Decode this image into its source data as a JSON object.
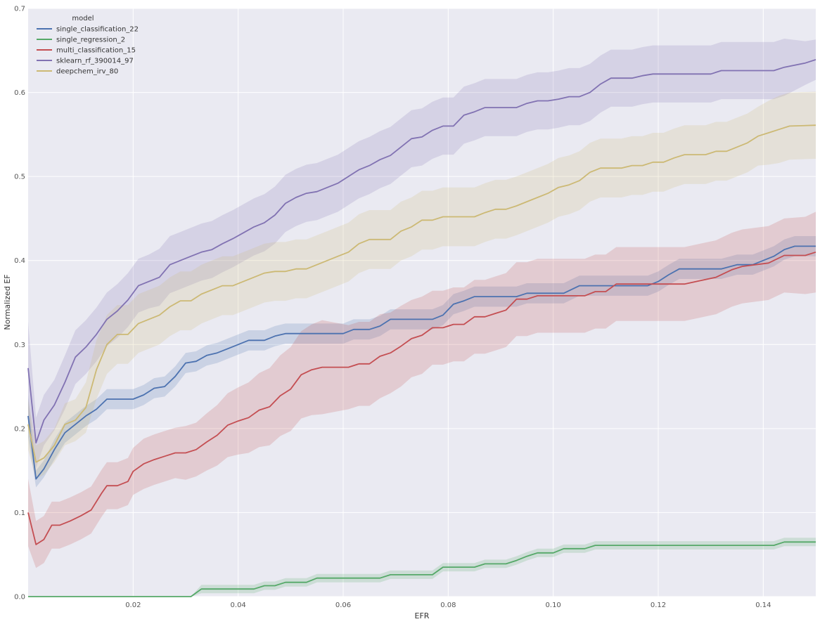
{
  "chart_data": {
    "type": "line",
    "title": "",
    "xlabel": "EFR",
    "ylabel": "Normalized EF",
    "xlim": [
      0.0,
      0.15
    ],
    "ylim": [
      0.0,
      0.7
    ],
    "x_ticks": [
      0.02,
      0.04,
      0.06,
      0.08,
      0.1,
      0.12,
      0.14
    ],
    "x_tick_labels": [
      "0.02",
      "0.04",
      "0.06",
      "0.08",
      "0.10",
      "0.12",
      "0.14"
    ],
    "y_ticks": [
      0.0,
      0.1,
      0.2,
      0.3,
      0.4,
      0.5,
      0.6,
      0.7
    ],
    "y_tick_labels": [
      "0.0",
      "0.1",
      "0.2",
      "0.3",
      "0.4",
      "0.5",
      "0.6",
      "0.7"
    ],
    "grid": true,
    "background": "#eaeaf2",
    "legend": {
      "title": "model",
      "position": "top-left"
    },
    "series": [
      {
        "name": "single_classification_22",
        "color": "#4c72b0",
        "x": [
          0.0,
          0.0015,
          0.003,
          0.005,
          0.007,
          0.009,
          0.011,
          0.013,
          0.015,
          0.02,
          0.022,
          0.024,
          0.026,
          0.028,
          0.03,
          0.032,
          0.034,
          0.036,
          0.038,
          0.04,
          0.042,
          0.045,
          0.047,
          0.049,
          0.051,
          0.053,
          0.06,
          0.062,
          0.065,
          0.067,
          0.069,
          0.073,
          0.077,
          0.079,
          0.081,
          0.083,
          0.085,
          0.09,
          0.093,
          0.095,
          0.1,
          0.102,
          0.105,
          0.113,
          0.118,
          0.12,
          0.122,
          0.124,
          0.128,
          0.13,
          0.132,
          0.135,
          0.138,
          0.14,
          0.142,
          0.144,
          0.146,
          0.15
        ],
        "values": [
          0.215,
          0.14,
          0.152,
          0.175,
          0.195,
          0.205,
          0.215,
          0.223,
          0.235,
          0.235,
          0.24,
          0.248,
          0.25,
          0.262,
          0.278,
          0.28,
          0.287,
          0.29,
          0.295,
          0.3,
          0.305,
          0.305,
          0.31,
          0.313,
          0.313,
          0.313,
          0.313,
          0.318,
          0.318,
          0.322,
          0.33,
          0.33,
          0.33,
          0.335,
          0.348,
          0.352,
          0.357,
          0.357,
          0.357,
          0.361,
          0.361,
          0.361,
          0.37,
          0.37,
          0.37,
          0.375,
          0.383,
          0.39,
          0.39,
          0.39,
          0.39,
          0.395,
          0.395,
          0.4,
          0.405,
          0.413,
          0.417,
          0.417
        ],
        "band": [
          0.025,
          0.01,
          0.01,
          0.012,
          0.012,
          0.012,
          0.012,
          0.012,
          0.012,
          0.012,
          0.012,
          0.012,
          0.012,
          0.012,
          0.012,
          0.012,
          0.012,
          0.012,
          0.012,
          0.012,
          0.012,
          0.012,
          0.012,
          0.012,
          0.012,
          0.012,
          0.012,
          0.012,
          0.012,
          0.012,
          0.012,
          0.012,
          0.012,
          0.012,
          0.012,
          0.012,
          0.012,
          0.012,
          0.012,
          0.012,
          0.012,
          0.012,
          0.012,
          0.012,
          0.012,
          0.012,
          0.012,
          0.012,
          0.012,
          0.012,
          0.012,
          0.012,
          0.012,
          0.012,
          0.012,
          0.012,
          0.012,
          0.012
        ]
      },
      {
        "name": "single_regression_2",
        "color": "#55a868",
        "x": [
          0.0,
          0.031,
          0.033,
          0.043,
          0.045,
          0.047,
          0.049,
          0.051,
          0.053,
          0.055,
          0.067,
          0.069,
          0.071,
          0.077,
          0.079,
          0.081,
          0.085,
          0.087,
          0.091,
          0.093,
          0.095,
          0.097,
          0.099,
          0.1,
          0.102,
          0.104,
          0.106,
          0.108,
          0.142,
          0.144,
          0.15
        ],
        "values": [
          0.0,
          0.0,
          0.009,
          0.009,
          0.013,
          0.013,
          0.017,
          0.017,
          0.017,
          0.022,
          0.022,
          0.026,
          0.026,
          0.026,
          0.035,
          0.035,
          0.035,
          0.039,
          0.039,
          0.043,
          0.048,
          0.052,
          0.052,
          0.052,
          0.057,
          0.057,
          0.057,
          0.061,
          0.061,
          0.065,
          0.065
        ],
        "band": [
          0.0,
          0.0,
          0.005,
          0.005,
          0.005,
          0.005,
          0.005,
          0.005,
          0.005,
          0.005,
          0.005,
          0.005,
          0.005,
          0.005,
          0.005,
          0.005,
          0.005,
          0.005,
          0.005,
          0.005,
          0.005,
          0.005,
          0.005,
          0.005,
          0.005,
          0.005,
          0.005,
          0.005,
          0.005,
          0.005,
          0.005
        ]
      },
      {
        "name": "multi_classification_15",
        "color": "#c44e52",
        "x": [
          0.0,
          0.0015,
          0.003,
          0.0045,
          0.006,
          0.008,
          0.01,
          0.012,
          0.014,
          0.015,
          0.017,
          0.019,
          0.02,
          0.022,
          0.024,
          0.026,
          0.028,
          0.03,
          0.032,
          0.034,
          0.036,
          0.038,
          0.04,
          0.042,
          0.044,
          0.046,
          0.048,
          0.05,
          0.052,
          0.054,
          0.056,
          0.061,
          0.063,
          0.065,
          0.067,
          0.069,
          0.071,
          0.073,
          0.075,
          0.077,
          0.079,
          0.081,
          0.083,
          0.085,
          0.087,
          0.089,
          0.091,
          0.093,
          0.095,
          0.097,
          0.099,
          0.101,
          0.106,
          0.108,
          0.11,
          0.112,
          0.125,
          0.128,
          0.131,
          0.134,
          0.136,
          0.141,
          0.144,
          0.148,
          0.15
        ],
        "values": [
          0.1,
          0.062,
          0.068,
          0.085,
          0.085,
          0.09,
          0.096,
          0.103,
          0.123,
          0.132,
          0.132,
          0.137,
          0.149,
          0.158,
          0.163,
          0.167,
          0.171,
          0.171,
          0.175,
          0.184,
          0.192,
          0.204,
          0.209,
          0.213,
          0.222,
          0.226,
          0.239,
          0.247,
          0.264,
          0.27,
          0.273,
          0.273,
          0.277,
          0.277,
          0.286,
          0.29,
          0.298,
          0.307,
          0.311,
          0.32,
          0.32,
          0.324,
          0.324,
          0.333,
          0.333,
          0.337,
          0.341,
          0.354,
          0.354,
          0.358,
          0.358,
          0.358,
          0.358,
          0.363,
          0.363,
          0.372,
          0.372,
          0.376,
          0.38,
          0.389,
          0.393,
          0.397,
          0.406,
          0.406,
          0.41
        ],
        "band": [
          0.04,
          0.028,
          0.028,
          0.028,
          0.028,
          0.028,
          0.028,
          0.028,
          0.028,
          0.028,
          0.028,
          0.028,
          0.028,
          0.03,
          0.03,
          0.03,
          0.03,
          0.032,
          0.032,
          0.034,
          0.036,
          0.038,
          0.04,
          0.042,
          0.044,
          0.046,
          0.048,
          0.05,
          0.052,
          0.054,
          0.056,
          0.05,
          0.05,
          0.05,
          0.05,
          0.048,
          0.048,
          0.046,
          0.046,
          0.044,
          0.044,
          0.044,
          0.044,
          0.044,
          0.044,
          0.044,
          0.044,
          0.044,
          0.044,
          0.044,
          0.044,
          0.044,
          0.044,
          0.044,
          0.044,
          0.044,
          0.044,
          0.044,
          0.044,
          0.044,
          0.044,
          0.044,
          0.044,
          0.046,
          0.048
        ]
      },
      {
        "name": "sklearn_rf_390014_97",
        "color": "#8172b2",
        "x": [
          0.0,
          0.0015,
          0.003,
          0.005,
          0.007,
          0.009,
          0.011,
          0.013,
          0.015,
          0.017,
          0.019,
          0.021,
          0.023,
          0.025,
          0.027,
          0.029,
          0.031,
          0.033,
          0.035,
          0.037,
          0.039,
          0.041,
          0.043,
          0.045,
          0.047,
          0.049,
          0.051,
          0.053,
          0.055,
          0.057,
          0.059,
          0.061,
          0.063,
          0.065,
          0.067,
          0.069,
          0.071,
          0.073,
          0.075,
          0.077,
          0.079,
          0.081,
          0.083,
          0.085,
          0.087,
          0.089,
          0.091,
          0.093,
          0.095,
          0.097,
          0.099,
          0.101,
          0.103,
          0.105,
          0.107,
          0.109,
          0.111,
          0.113,
          0.115,
          0.117,
          0.119,
          0.13,
          0.132,
          0.142,
          0.144,
          0.148,
          0.15
        ],
        "values": [
          0.272,
          0.183,
          0.21,
          0.228,
          0.255,
          0.285,
          0.297,
          0.312,
          0.33,
          0.34,
          0.353,
          0.37,
          0.375,
          0.38,
          0.395,
          0.4,
          0.405,
          0.41,
          0.413,
          0.42,
          0.426,
          0.433,
          0.44,
          0.445,
          0.454,
          0.468,
          0.475,
          0.48,
          0.482,
          0.487,
          0.492,
          0.5,
          0.508,
          0.513,
          0.52,
          0.525,
          0.535,
          0.545,
          0.547,
          0.555,
          0.56,
          0.56,
          0.573,
          0.577,
          0.582,
          0.582,
          0.582,
          0.582,
          0.587,
          0.59,
          0.59,
          0.592,
          0.595,
          0.595,
          0.6,
          0.61,
          0.617,
          0.617,
          0.617,
          0.62,
          0.622,
          0.622,
          0.626,
          0.626,
          0.63,
          0.635,
          0.639
        ],
        "band": [
          0.055,
          0.03,
          0.03,
          0.03,
          0.032,
          0.032,
          0.032,
          0.032,
          0.032,
          0.032,
          0.032,
          0.032,
          0.032,
          0.034,
          0.034,
          0.034,
          0.034,
          0.034,
          0.034,
          0.034,
          0.034,
          0.034,
          0.034,
          0.034,
          0.034,
          0.034,
          0.034,
          0.034,
          0.034,
          0.034,
          0.034,
          0.034,
          0.034,
          0.034,
          0.034,
          0.034,
          0.034,
          0.034,
          0.034,
          0.034,
          0.034,
          0.034,
          0.034,
          0.034,
          0.034,
          0.034,
          0.034,
          0.034,
          0.034,
          0.034,
          0.034,
          0.034,
          0.034,
          0.034,
          0.034,
          0.034,
          0.034,
          0.034,
          0.034,
          0.034,
          0.034,
          0.034,
          0.034,
          0.034,
          0.034,
          0.026,
          0.024
        ]
      },
      {
        "name": "deepchem_irv_80",
        "color": "#ccb974",
        "x": [
          0.0,
          0.0015,
          0.003,
          0.005,
          0.007,
          0.009,
          0.011,
          0.013,
          0.015,
          0.017,
          0.019,
          0.021,
          0.023,
          0.025,
          0.027,
          0.029,
          0.031,
          0.033,
          0.035,
          0.037,
          0.039,
          0.041,
          0.043,
          0.045,
          0.047,
          0.049,
          0.051,
          0.053,
          0.055,
          0.057,
          0.059,
          0.061,
          0.063,
          0.065,
          0.067,
          0.069,
          0.071,
          0.073,
          0.075,
          0.077,
          0.079,
          0.081,
          0.083,
          0.085,
          0.087,
          0.089,
          0.091,
          0.093,
          0.095,
          0.097,
          0.099,
          0.101,
          0.103,
          0.105,
          0.107,
          0.109,
          0.111,
          0.113,
          0.115,
          0.117,
          0.119,
          0.121,
          0.123,
          0.125,
          0.127,
          0.129,
          0.131,
          0.133,
          0.135,
          0.137,
          0.139,
          0.141,
          0.143,
          0.145,
          0.15
        ],
        "values": [
          0.205,
          0.16,
          0.165,
          0.18,
          0.205,
          0.21,
          0.225,
          0.27,
          0.3,
          0.312,
          0.312,
          0.325,
          0.33,
          0.335,
          0.345,
          0.352,
          0.352,
          0.36,
          0.365,
          0.37,
          0.37,
          0.375,
          0.38,
          0.385,
          0.387,
          0.387,
          0.39,
          0.39,
          0.395,
          0.4,
          0.405,
          0.41,
          0.42,
          0.425,
          0.425,
          0.425,
          0.435,
          0.44,
          0.448,
          0.448,
          0.452,
          0.452,
          0.452,
          0.452,
          0.457,
          0.461,
          0.461,
          0.465,
          0.47,
          0.475,
          0.48,
          0.487,
          0.49,
          0.495,
          0.505,
          0.51,
          0.51,
          0.51,
          0.513,
          0.513,
          0.517,
          0.517,
          0.522,
          0.526,
          0.526,
          0.526,
          0.53,
          0.53,
          0.535,
          0.54,
          0.548,
          0.552,
          0.556,
          0.56,
          0.561
        ],
        "band": [
          0.03,
          0.02,
          0.02,
          0.02,
          0.025,
          0.025,
          0.03,
          0.035,
          0.035,
          0.035,
          0.035,
          0.035,
          0.035,
          0.035,
          0.035,
          0.035,
          0.035,
          0.035,
          0.035,
          0.035,
          0.035,
          0.035,
          0.035,
          0.035,
          0.035,
          0.035,
          0.035,
          0.035,
          0.035,
          0.035,
          0.035,
          0.035,
          0.035,
          0.035,
          0.035,
          0.035,
          0.035,
          0.035,
          0.035,
          0.035,
          0.035,
          0.035,
          0.035,
          0.035,
          0.035,
          0.035,
          0.035,
          0.035,
          0.035,
          0.035,
          0.035,
          0.035,
          0.035,
          0.035,
          0.035,
          0.035,
          0.035,
          0.035,
          0.035,
          0.035,
          0.035,
          0.035,
          0.035,
          0.035,
          0.035,
          0.035,
          0.035,
          0.035,
          0.035,
          0.035,
          0.035,
          0.038,
          0.04,
          0.04,
          0.04
        ]
      }
    ]
  }
}
